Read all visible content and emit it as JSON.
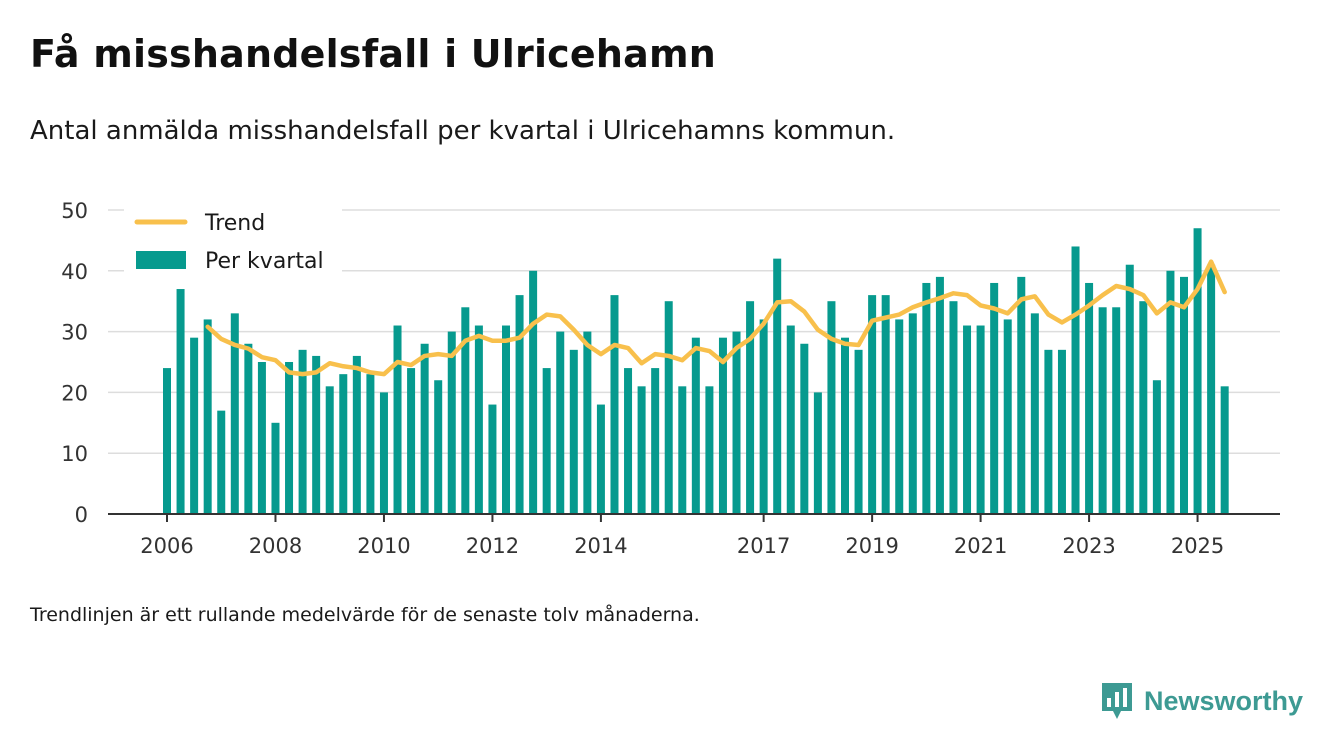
{
  "header": {
    "title": "Få misshandelsfall i Ulricehamn",
    "subtitle": "Antal anmälda misshandelsfall per kvartal i Ulricehamns kommun."
  },
  "footnote": "Trendlinjen är ett rullande medelvärde för de senaste tolv månaderna.",
  "brand": {
    "name": "Newsworthy",
    "icon": "newsworthy-logo-icon"
  },
  "colors": {
    "bars": "#069a8e",
    "trend": "#f8c04c",
    "grid": "#dddddd",
    "axis": "#333333",
    "brand": "#3d9a93"
  },
  "chart_data": {
    "type": "bar",
    "title": "Få misshandelsfall i Ulricehamn",
    "xlabel": "",
    "ylabel": "",
    "ylim": [
      0,
      50
    ],
    "yticks": [
      0,
      10,
      20,
      30,
      40,
      50
    ],
    "grid": true,
    "legend_position": "top-left",
    "x_tick_labels": [
      {
        "label": "2006",
        "index": 0
      },
      {
        "label": "2008",
        "index": 8
      },
      {
        "label": "2010",
        "index": 16
      },
      {
        "label": "2012",
        "index": 24
      },
      {
        "label": "2014",
        "index": 32
      },
      {
        "label": "2017",
        "index": 44
      },
      {
        "label": "2019",
        "index": 52
      },
      {
        "label": "2021",
        "index": 60
      },
      {
        "label": "2023",
        "index": 68
      },
      {
        "label": "2025",
        "index": 76
      }
    ],
    "series": [
      {
        "name": "Per kvartal",
        "type": "bar",
        "values": [
          24,
          37,
          29,
          32,
          17,
          33,
          28,
          25,
          15,
          25,
          27,
          26,
          21,
          23,
          26,
          23,
          20,
          31,
          24,
          28,
          22,
          30,
          34,
          31,
          18,
          31,
          36,
          40,
          24,
          30,
          27,
          30,
          18,
          36,
          24,
          21,
          24,
          35,
          21,
          29,
          21,
          29,
          30,
          35,
          32,
          42,
          31,
          28,
          20,
          35,
          29,
          27,
          36,
          36,
          32,
          33,
          38,
          39,
          35,
          31,
          31,
          38,
          32,
          39,
          33,
          27,
          27,
          44,
          38,
          34,
          34,
          41,
          35,
          22,
          40,
          39,
          47,
          41,
          21
        ]
      },
      {
        "name": "Trend",
        "type": "line",
        "start_index": 3,
        "values": [
          30.8,
          28.8,
          27.8,
          27.2,
          25.8,
          25.3,
          23.3,
          23.0,
          23.3,
          24.8,
          24.3,
          24.0,
          23.3,
          23.0,
          25.0,
          24.5,
          26.0,
          26.3,
          26.0,
          28.5,
          29.3,
          28.5,
          28.5,
          29.0,
          31.3,
          32.8,
          32.5,
          30.3,
          27.8,
          26.3,
          27.8,
          27.3,
          24.8,
          26.3,
          26.0,
          25.3,
          27.3,
          26.8,
          25.0,
          27.3,
          28.8,
          31.3,
          34.8,
          35.0,
          33.3,
          30.3,
          28.8,
          28.0,
          27.8,
          31.8,
          32.3,
          32.8,
          34.0,
          34.8,
          35.5,
          36.3,
          36.0,
          34.3,
          33.8,
          33.0,
          35.3,
          35.8,
          32.8,
          31.5,
          32.8,
          34.3,
          36.0,
          37.5,
          37.0,
          36.0,
          33.0,
          34.8,
          34.0,
          37.0,
          41.5,
          36.5
        ]
      }
    ]
  }
}
